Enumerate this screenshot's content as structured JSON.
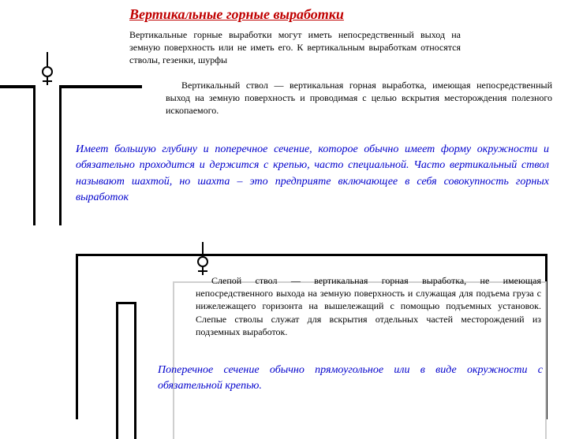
{
  "title": "Вертикальные горные выработки",
  "intro": "Вертикальные горные выработки могут иметь непосредственный выход на земную поверхность или не иметь его. К вертикальным выработкам относятся стволы, гезенки, шурфы",
  "vertStvol": "Вертикальный ствол — вертикальная горная выработка, имеющая непосредственный выход на земную поверхность и проводимая с целью вскрытия месторождения полезного ископаемого.",
  "note1": "Имеет большую глубину и поперечное сечение, которое обычно имеет форму окружности и обязательно проходится и держится с крепью, часто специальной. Часто вертикальный ствол называют шахтой, но шахта – это предприяте включающее в себя совокупность горных выработок",
  "slepStvol": "Слепой ствол — вертикальная горная выработка, не имеющая непосредственного выхода на земную поверхность и служащая для подъема груза с нижележащего горизонта на вышележащий с помощью подъемных установок. Слепые стволы служат для вскрытия отдельных частей месторождений из подземных выработок.",
  "note2": "Поперечное сечение обычно прямоугольное или в виде окружности с обязательной крепью.",
  "colors": {
    "title": "#c00000",
    "accent": "#0000cc",
    "body": "#000000",
    "light_frame": "#cfcfcf",
    "bg": "#ffffff"
  },
  "diagram1": {
    "type": "technical-sketch",
    "description": "vertical shaft from surface",
    "stroke": "#000000"
  },
  "diagram2": {
    "type": "technical-sketch",
    "description": "blind shaft inside underground frame",
    "stroke": "#000000"
  }
}
